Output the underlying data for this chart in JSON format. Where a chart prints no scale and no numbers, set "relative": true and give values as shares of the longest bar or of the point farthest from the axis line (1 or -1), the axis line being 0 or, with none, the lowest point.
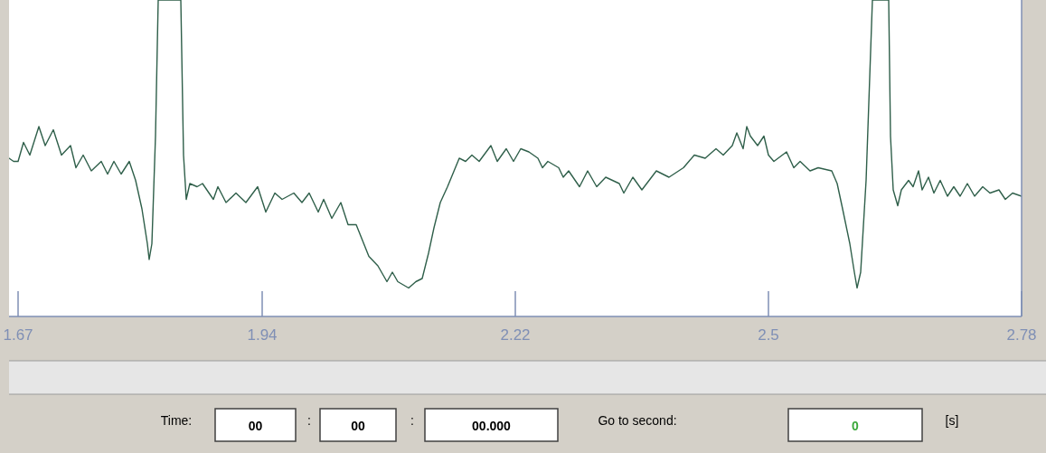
{
  "chart_data": {
    "type": "line",
    "relative": true,
    "xlim": [
      1.66,
      2.78
    ],
    "xticks": [
      1.67,
      1.94,
      2.22,
      2.5,
      2.78
    ],
    "series": [
      {
        "color": "#2f5f4a",
        "x": [
          1.66,
          1.665,
          1.67,
          1.676,
          1.683,
          1.693,
          1.7,
          1.709,
          1.718,
          1.728,
          1.734,
          1.742,
          1.751,
          1.762,
          1.769,
          1.776,
          1.784,
          1.793,
          1.8,
          1.807,
          1.813,
          1.815,
          1.818,
          1.822,
          1.825,
          1.85,
          1.853,
          1.856,
          1.86,
          1.868,
          1.874,
          1.886,
          1.891,
          1.9,
          1.911,
          1.922,
          1.935,
          1.944,
          1.954,
          1.962,
          1.975,
          1.984,
          1.992,
          2.002,
          2.008,
          2.017,
          2.027,
          2.035,
          2.044,
          2.058,
          2.068,
          2.078,
          2.084,
          2.09,
          2.102,
          2.11,
          2.117,
          2.124,
          2.13,
          2.137,
          2.145,
          2.158,
          2.165,
          2.172,
          2.18,
          2.193,
          2.2,
          2.21,
          2.218,
          2.226,
          2.235,
          2.245,
          2.25,
          2.256,
          2.268,
          2.273,
          2.279,
          2.291,
          2.3,
          2.31,
          2.32,
          2.335,
          2.34,
          2.35,
          2.36,
          2.376,
          2.39,
          2.406,
          2.418,
          2.43,
          2.442,
          2.45,
          2.46,
          2.465,
          2.472,
          2.476,
          2.48,
          2.488,
          2.495,
          2.5,
          2.506,
          2.52,
          2.528,
          2.535,
          2.546,
          2.555,
          2.57,
          2.576,
          2.582,
          2.59,
          2.595,
          2.598,
          2.602,
          2.608,
          2.615,
          2.633,
          2.635,
          2.638,
          2.643,
          2.647,
          2.655,
          2.66,
          2.666,
          2.67,
          2.677,
          2.683,
          2.69,
          2.698,
          2.705,
          2.712,
          2.72,
          2.728,
          2.737,
          2.745,
          2.755,
          2.762,
          2.77,
          2.78
        ],
        "values": [
          0.5,
          0.49,
          0.49,
          0.55,
          0.51,
          0.6,
          0.54,
          0.59,
          0.51,
          0.54,
          0.47,
          0.51,
          0.46,
          0.49,
          0.45,
          0.49,
          0.45,
          0.49,
          0.43,
          0.34,
          0.23,
          0.18,
          0.23,
          0.57,
          1,
          1,
          0.51,
          0.37,
          0.42,
          0.41,
          0.42,
          0.37,
          0.41,
          0.36,
          0.39,
          0.36,
          0.41,
          0.33,
          0.39,
          0.37,
          0.39,
          0.36,
          0.39,
          0.33,
          0.37,
          0.31,
          0.36,
          0.29,
          0.29,
          0.19,
          0.16,
          0.11,
          0.14,
          0.11,
          0.09,
          0.11,
          0.12,
          0.2,
          0.28,
          0.36,
          0.41,
          0.5,
          0.49,
          0.51,
          0.49,
          0.54,
          0.49,
          0.53,
          0.49,
          0.53,
          0.52,
          0.5,
          0.47,
          0.49,
          0.47,
          0.44,
          0.46,
          0.41,
          0.46,
          0.41,
          0.44,
          0.42,
          0.39,
          0.44,
          0.4,
          0.46,
          0.44,
          0.47,
          0.51,
          0.5,
          0.53,
          0.51,
          0.54,
          0.58,
          0.53,
          0.6,
          0.57,
          0.54,
          0.57,
          0.51,
          0.49,
          0.52,
          0.47,
          0.49,
          0.46,
          0.47,
          0.46,
          0.42,
          0.34,
          0.23,
          0.14,
          0.09,
          0.14,
          0.43,
          1,
          1,
          0.57,
          0.4,
          0.35,
          0.4,
          0.43,
          0.41,
          0.46,
          0.4,
          0.44,
          0.39,
          0.43,
          0.38,
          0.41,
          0.38,
          0.42,
          0.38,
          0.41,
          0.39,
          0.4,
          0.37,
          0.39,
          0.38
        ]
      }
    ],
    "annotations": [
      "Time:",
      "00",
      ":",
      "00",
      ":",
      "00.000",
      "Go to second:",
      "0",
      "[s]"
    ]
  }
}
